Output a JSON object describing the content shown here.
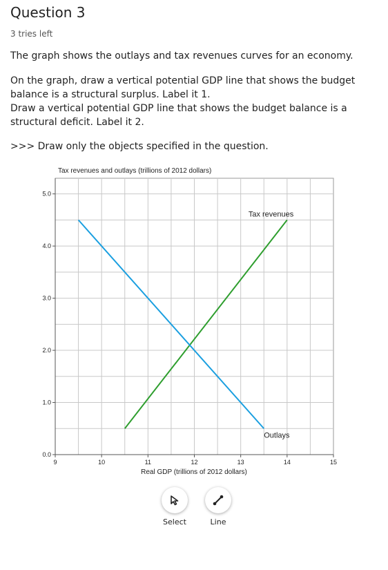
{
  "header": {
    "title": "Question 3",
    "tries": "3 tries left"
  },
  "question": {
    "p1": "The graph shows the outlays and tax revenues curves for an economy.",
    "p2": "On the graph, draw a vertical potential GDP line that shows the budget balance is a structural surplus. Label it 1.",
    "p2b": "Draw a vertical potential GDP line that shows the budget balance is a structural deficit. Label it 2.",
    "p3": ">>> Draw only the objects specified in the question."
  },
  "chart_data": {
    "type": "line",
    "ylabel": "Tax revenues and outlays (trillions of 2012 dollars)",
    "xlabel": "Real GDP (trillions of 2012 dollars)",
    "xlim": [
      9,
      15
    ],
    "ylim": [
      0,
      5.3
    ],
    "x_ticks": [
      "9",
      "10",
      "11",
      "12",
      "13",
      "14",
      "15"
    ],
    "y_ticks": [
      "0.0",
      "1.0",
      "2.0",
      "3.0",
      "4.0",
      "5.0"
    ],
    "grid": true,
    "series": [
      {
        "name": "Tax revenues",
        "color": "#2e9e2e",
        "x": [
          10.5,
          14
        ],
        "y": [
          0.5,
          4.5
        ]
      },
      {
        "name": "Outlays",
        "color": "#1a9fe0",
        "x": [
          9.5,
          13.5
        ],
        "y": [
          4.5,
          0.5
        ]
      }
    ]
  },
  "tools": {
    "select": {
      "label": "Select",
      "icon": "cursor-arrow-icon"
    },
    "line": {
      "label": "Line",
      "icon": "line-tool-icon"
    }
  }
}
